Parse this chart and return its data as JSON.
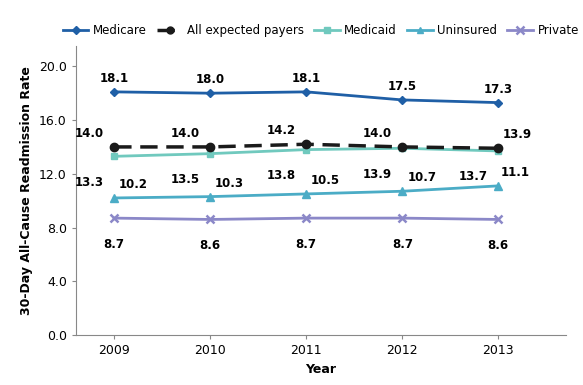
{
  "years": [
    2009,
    2010,
    2011,
    2012,
    2013
  ],
  "medicare": [
    18.1,
    18.0,
    18.1,
    17.5,
    17.3
  ],
  "all_payers": [
    14.0,
    14.0,
    14.2,
    14.0,
    13.9
  ],
  "medicaid": [
    13.3,
    13.5,
    13.8,
    13.9,
    13.7
  ],
  "uninsured": [
    10.2,
    10.3,
    10.5,
    10.7,
    11.1
  ],
  "private": [
    8.7,
    8.6,
    8.7,
    8.7,
    8.6
  ],
  "medicare_color": "#1F5FA6",
  "all_payers_color": "#1a1a1a",
  "medicaid_color": "#70C9BE",
  "uninsured_color": "#4BACC6",
  "private_color": "#8B88C8",
  "ylabel": "30-Day All-Cause Readmission Rate",
  "xlabel": "Year",
  "ylim": [
    0.0,
    21.5
  ],
  "yticks": [
    0.0,
    4.0,
    8.0,
    12.0,
    16.0,
    20.0
  ],
  "label_fontsize": 9,
  "tick_fontsize": 9,
  "annot_fontsize": 8.5,
  "legend_fontsize": 8.5
}
